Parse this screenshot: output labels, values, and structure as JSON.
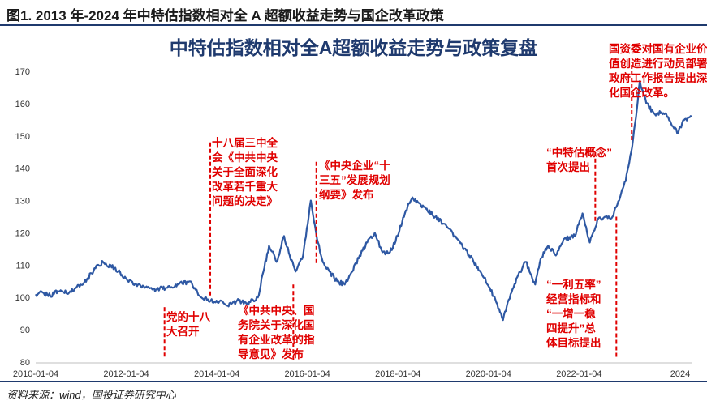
{
  "figure": {
    "title": "图1. 2013 年-2024 年中特估指数相对全 A 超额收益走势与国企改革政策",
    "source": "资料来源：wind，国投证券研究中心"
  },
  "colors": {
    "line": "#2e58a3",
    "annotation": "#e00000",
    "accent": "#1f3a6e"
  },
  "chart_data": {
    "type": "line",
    "title": "中特估指数相对全A超额收益走势与政策复盘",
    "xlabel": "",
    "ylabel": "",
    "ylim": [
      80,
      170
    ],
    "yticks": [
      80,
      90,
      100,
      110,
      120,
      130,
      140,
      150,
      160,
      170
    ],
    "xlim": [
      "2010-01-04",
      "2024-06-30"
    ],
    "xticks": [
      "2010-01-04",
      "2012-01-04",
      "2014-01-04",
      "2016-01-04",
      "2018-01-04",
      "2020-01-04",
      "2022-01-04",
      "2024"
    ],
    "grid": false,
    "series": [
      {
        "values": [
          [
            "2010-01-04",
            101
          ],
          [
            "2010-03-01",
            101.5
          ],
          [
            "2010-05-01",
            100.5
          ],
          [
            "2010-07-01",
            102
          ],
          [
            "2010-10-01",
            101.5
          ],
          [
            "2011-01-01",
            104
          ],
          [
            "2011-03-01",
            106
          ],
          [
            "2011-05-01",
            109
          ],
          [
            "2011-07-01",
            111
          ],
          [
            "2011-10-01",
            109
          ],
          [
            "2012-01-01",
            106
          ],
          [
            "2012-03-01",
            104
          ],
          [
            "2012-06-01",
            103
          ],
          [
            "2012-09-01",
            102.5
          ],
          [
            "2012-12-01",
            103
          ],
          [
            "2013-03-01",
            104
          ],
          [
            "2013-06-01",
            105
          ],
          [
            "2013-09-01",
            100
          ],
          [
            "2013-11-15",
            99
          ],
          [
            "2014-01-01",
            99
          ],
          [
            "2014-04-01",
            97.5
          ],
          [
            "2014-07-01",
            99
          ],
          [
            "2014-09-01",
            98
          ],
          [
            "2014-12-01",
            100
          ],
          [
            "2015-01-15",
            108
          ],
          [
            "2015-03-01",
            116
          ],
          [
            "2015-05-01",
            111
          ],
          [
            "2015-07-01",
            119
          ],
          [
            "2015-08-15",
            113
          ],
          [
            "2015-10-01",
            108
          ],
          [
            "2015-12-01",
            113
          ],
          [
            "2016-01-15",
            125
          ],
          [
            "2016-02-01",
            130
          ],
          [
            "2016-03-15",
            120
          ],
          [
            "2016-05-01",
            112
          ],
          [
            "2016-07-01",
            108
          ],
          [
            "2016-09-01",
            105
          ],
          [
            "2016-11-01",
            104
          ],
          [
            "2017-01-01",
            108
          ],
          [
            "2017-03-01",
            113
          ],
          [
            "2017-05-01",
            117
          ],
          [
            "2017-07-01",
            120
          ],
          [
            "2017-09-01",
            114
          ],
          [
            "2017-11-01",
            114
          ],
          [
            "2018-01-01",
            119
          ],
          [
            "2018-03-01",
            126
          ],
          [
            "2018-05-01",
            131
          ],
          [
            "2018-08-01",
            128
          ],
          [
            "2018-11-01",
            125
          ],
          [
            "2019-02-01",
            122
          ],
          [
            "2019-05-01",
            118
          ],
          [
            "2019-08-01",
            113
          ],
          [
            "2019-11-01",
            108
          ],
          [
            "2020-01-15",
            103
          ],
          [
            "2020-03-15",
            98
          ],
          [
            "2020-05-01",
            93
          ],
          [
            "2020-07-01",
            101
          ],
          [
            "2020-09-01",
            107
          ],
          [
            "2020-11-01",
            111
          ],
          [
            "2021-01-15",
            104
          ],
          [
            "2021-03-01",
            112
          ],
          [
            "2021-05-01",
            116
          ],
          [
            "2021-07-01",
            113
          ],
          [
            "2021-09-01",
            118
          ],
          [
            "2021-12-01",
            119
          ],
          [
            "2022-02-01",
            126
          ],
          [
            "2022-04-01",
            117
          ],
          [
            "2022-06-01",
            124
          ],
          [
            "2022-08-01",
            125
          ],
          [
            "2022-10-01",
            125
          ],
          [
            "2022-12-01",
            131
          ],
          [
            "2023-01-15",
            136
          ],
          [
            "2023-03-01",
            145
          ],
          [
            "2023-04-15",
            158
          ],
          [
            "2023-05-10",
            167
          ],
          [
            "2023-07-01",
            160
          ],
          [
            "2023-09-01",
            157
          ],
          [
            "2023-12-01",
            157
          ],
          [
            "2024-02-01",
            153
          ],
          [
            "2024-03-15",
            151
          ],
          [
            "2024-04-15",
            154
          ],
          [
            "2024-06-30",
            156
          ]
        ]
      }
    ],
    "annotations": [
      {
        "date": "2012-11-08",
        "line_top": 97,
        "line_bottom": 81,
        "text": "党的十八\n大召开",
        "text_x": "2012-11-20",
        "text_y": 96
      },
      {
        "date": "2013-11-12",
        "line_top": 148,
        "line_bottom": 100,
        "text": "十八届三中全\n会《中共中央\n关于全面深化\n改革若千重大\n问题的决定》",
        "text_x": "2013-11-25",
        "text_y": 150
      },
      {
        "date": "2015-09-13",
        "line_top": 104,
        "line_bottom": 80,
        "text": "《中共中央、国\n务院关于深化国\n有企业改革的指\n导意见》发布",
        "text_x": "2014-06-20",
        "text_y": 98
      },
      {
        "date": "2016-03-17",
        "line_top": 142,
        "line_bottom": 110,
        "text": "《中央企业“十\n三五”发展规划\n纲要》发布",
        "text_x": "2016-04-10",
        "text_y": 143
      },
      {
        "date": "2022-05-15",
        "line_top": 145,
        "line_bottom": 123,
        "text": "“中特估概念”\n首次提出",
        "text_x": "2021-04-15",
        "text_y": 147
      },
      {
        "date": "2022-11-01",
        "line_top": 125,
        "line_bottom": 81,
        "text": "“一利五率”\n经营指标和\n“一增一稳\n四提升”总\n体目标提出",
        "text_x": "2021-04-15",
        "text_y": 106
      },
      {
        "date": "2023-03-05",
        "line_top": 173,
        "line_bottom": 148,
        "text": "国资委对国有企业价\n值创造进行动员部署；\n政府工作报告提出深\n化国企改革。",
        "text_x": "2022-09-01",
        "text_y": 179
      }
    ]
  }
}
